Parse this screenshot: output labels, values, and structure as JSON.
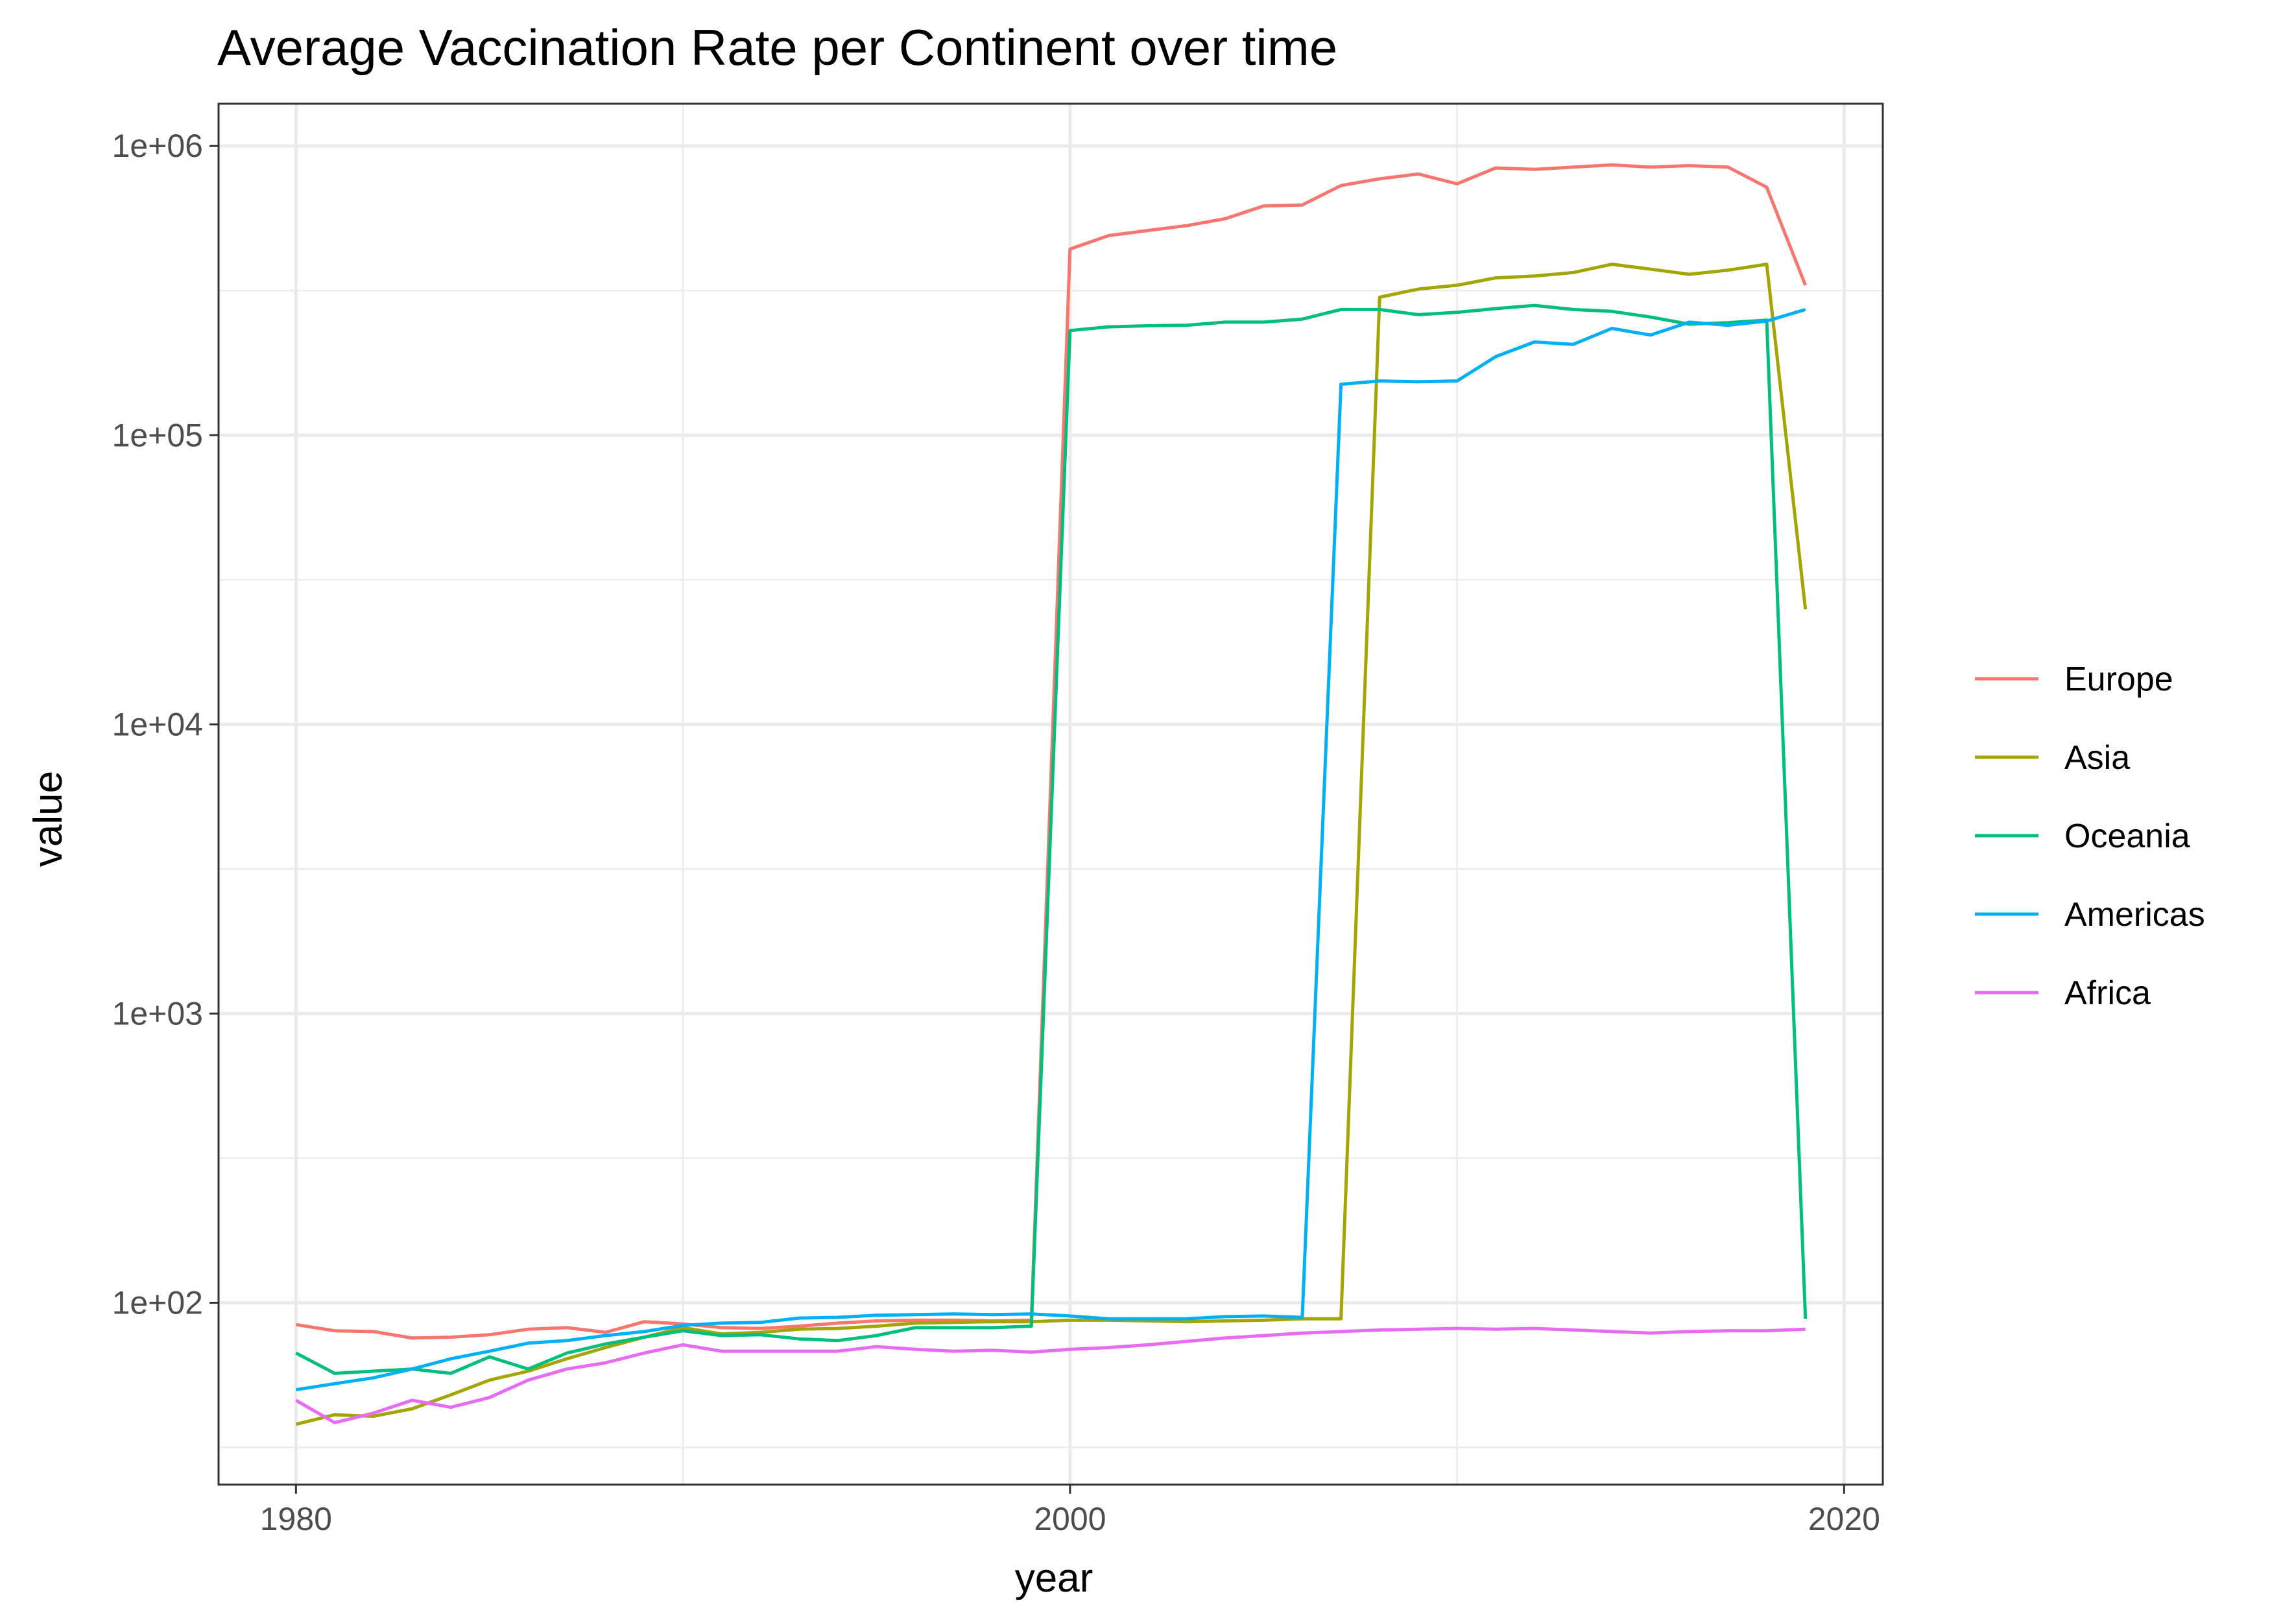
{
  "chart_data": {
    "type": "line",
    "title": "Average Vaccination Rate per Continent over time",
    "xlabel": "year",
    "ylabel": "value",
    "y_scale": "log10",
    "xlim": [
      1978,
      2021
    ],
    "ylim": [
      23.5,
      1400000
    ],
    "x_ticks": [
      1980,
      2000,
      2020
    ],
    "x_tick_labels": [
      "1980",
      "2000",
      "2020"
    ],
    "y_ticks": [
      100,
      1000,
      10000,
      100000,
      1000000
    ],
    "y_tick_labels": [
      "1e+02",
      "1e+03",
      "1e+04",
      "1e+05",
      "1e+06"
    ],
    "grid": true,
    "legend_position": "right",
    "x": [
      1980,
      1981,
      1982,
      1983,
      1984,
      1985,
      1986,
      1987,
      1988,
      1989,
      1990,
      1991,
      1992,
      1993,
      1994,
      1995,
      1996,
      1997,
      1998,
      1999,
      2000,
      2001,
      2002,
      2003,
      2004,
      2005,
      2006,
      2007,
      2008,
      2009,
      2010,
      2011,
      2012,
      2013,
      2014,
      2015,
      2016,
      2017,
      2018,
      2019
    ],
    "series": [
      {
        "name": "Europe",
        "color": "#F8766D",
        "values": [
          84,
          80,
          79.5,
          75.5,
          76,
          77.5,
          81,
          82,
          79,
          86,
          84.5,
          82,
          81.5,
          83,
          85,
          86.5,
          87,
          87,
          86.5,
          87,
          440000,
          490000,
          510000,
          530000,
          560000,
          620000,
          625000,
          730000,
          770000,
          800000,
          740000,
          840000,
          830000,
          845000,
          860000,
          845000,
          855000,
          845000,
          720000,
          330000
        ]
      },
      {
        "name": "Asia",
        "color": "#A3A500",
        "values": [
          38,
          41,
          40.5,
          43,
          48,
          54,
          58,
          64,
          70,
          76,
          82,
          78,
          79,
          81,
          81.5,
          83,
          85,
          85.5,
          86,
          86,
          87,
          87,
          86.5,
          86,
          86.5,
          87,
          88,
          88,
          300000,
          320000,
          330000,
          350000,
          355000,
          365000,
          390000,
          375000,
          360000,
          372000,
          390000,
          25000
        ]
      },
      {
        "name": "Oceania",
        "color": "#00BF7D",
        "values": [
          67,
          57,
          58,
          59,
          57,
          65,
          59,
          67,
          72,
          76,
          80,
          77,
          77.5,
          75,
          74,
          77,
          82,
          82,
          82,
          83,
          230000,
          237000,
          239000,
          240000,
          246000,
          246000,
          252000,
          272000,
          272000,
          261000,
          266000,
          274000,
          281000,
          272000,
          268000,
          256000,
          242000,
          245000,
          250000,
          88
        ]
      },
      {
        "name": "Americas",
        "color": "#00B0F6",
        "values": [
          50,
          52.5,
          55,
          59,
          64,
          68,
          72.5,
          74,
          77,
          79.5,
          83.5,
          85,
          85.5,
          88.5,
          89,
          90.5,
          91,
          91.5,
          91,
          91.5,
          90,
          88,
          88,
          88,
          89.5,
          90,
          89,
          150000,
          154000,
          153000,
          154000,
          187000,
          210000,
          206000,
          234000,
          222000,
          246000,
          240000,
          248000,
          272000
        ]
      },
      {
        "name": "Africa",
        "color": "#E76BF3",
        "values": [
          46,
          38.5,
          41.5,
          46,
          43.5,
          47,
          54,
          59,
          62,
          67,
          71.5,
          68,
          68,
          68,
          68,
          70.5,
          69,
          68,
          68.5,
          67.5,
          69,
          70,
          71.5,
          73.5,
          75.5,
          77,
          78.5,
          79.5,
          80.5,
          81,
          81.5,
          81,
          81.5,
          80.5,
          79.5,
          78.5,
          79.5,
          80,
          80,
          81
        ]
      }
    ]
  }
}
